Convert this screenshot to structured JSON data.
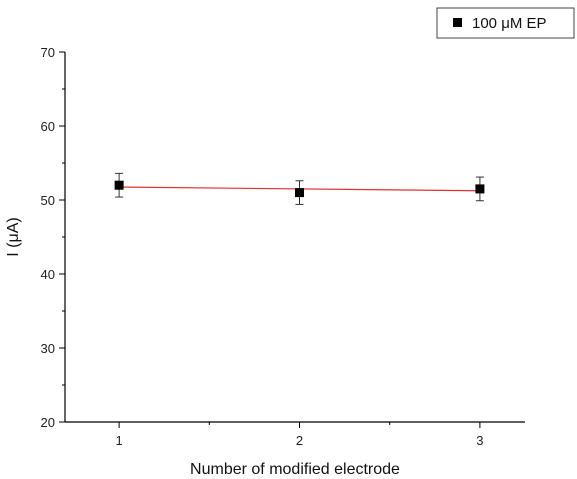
{
  "chart_data": {
    "type": "scatter",
    "title": "",
    "xlabel": "Number of modified electrode",
    "ylabel": "I (μA)",
    "xlim": [
      0.7,
      3.25
    ],
    "ylim": [
      20,
      70
    ],
    "x_ticks": [
      "1",
      "2",
      "3"
    ],
    "y_ticks": [
      "20",
      "30",
      "40",
      "50",
      "60",
      "70"
    ],
    "grid": false,
    "legend_position": "top-right",
    "series": [
      {
        "name": "100 μM EP",
        "marker": "square",
        "color": "#000000",
        "x": [
          1,
          2,
          3
        ],
        "y": [
          52.0,
          51.0,
          51.5
        ],
        "y_error": [
          1.6,
          1.6,
          1.6
        ]
      }
    ],
    "fit_line": {
      "color": "#e03030",
      "x": [
        1,
        3
      ],
      "y": [
        51.75,
        51.25
      ]
    }
  }
}
